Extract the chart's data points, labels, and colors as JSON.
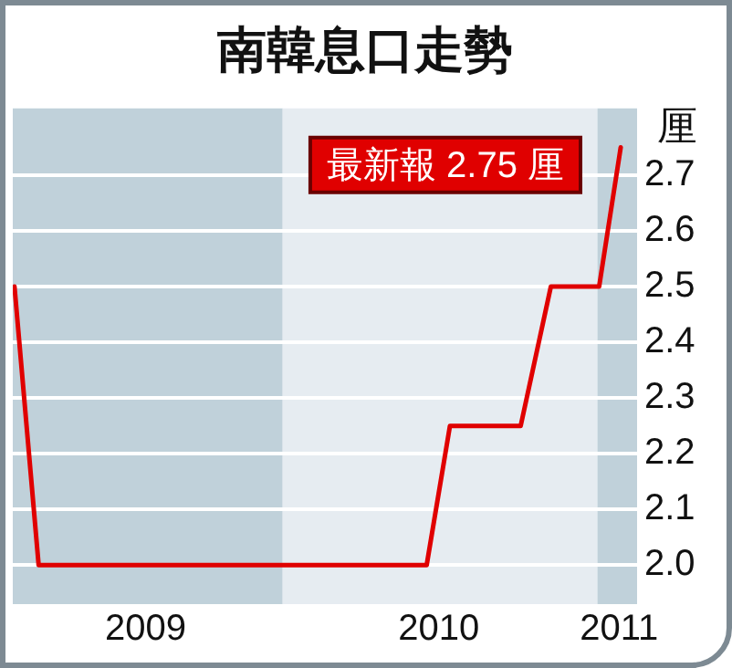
{
  "chart_data": {
    "type": "line",
    "title": "南韓息口走勢",
    "ylabel": "厘",
    "x": [
      "2009-02-24",
      "2009-03-24",
      "2010-06-17",
      "2010-07-14",
      "2010-10-04",
      "2010-11-08",
      "2011-01-03",
      "2011-01-28"
    ],
    "series": [
      {
        "color": "#e00000",
        "values": [
          2.5,
          2.0,
          2.0,
          2.25,
          2.25,
          2.5,
          2.5,
          2.75
        ]
      }
    ],
    "xlim": [
      "2009-02-22",
      "2011-02-16"
    ],
    "xticks": [
      {
        "value": "2009-07-26",
        "label": "2009"
      },
      {
        "value": "2010-07-01",
        "label": "2010"
      },
      {
        "value": "2011-01-26",
        "label": "2011"
      }
    ],
    "ylim": [
      1.93,
      2.82
    ],
    "yticks": [
      {
        "value": 2,
        "label": "2.0"
      },
      2.1,
      2.2,
      2.3,
      2.4,
      2.5,
      2.6,
      2.7
    ],
    "bands": [
      {
        "axis": "x",
        "from": "2009-02-22",
        "to": "2010-01-01",
        "color": "#c0d1da"
      },
      {
        "axis": "x",
        "from": "2010-01-01",
        "to": "2011-01-01",
        "color": "#e6ecf1"
      },
      {
        "axis": "x",
        "from": "2011-01-01",
        "to": "2011-02-16",
        "color": "#c0d1da"
      }
    ],
    "annotations": [
      "最新報 2.75 厘"
    ],
    "grid": "y",
    "legend": false,
    "marker": "none",
    "line_style": "solid"
  }
}
